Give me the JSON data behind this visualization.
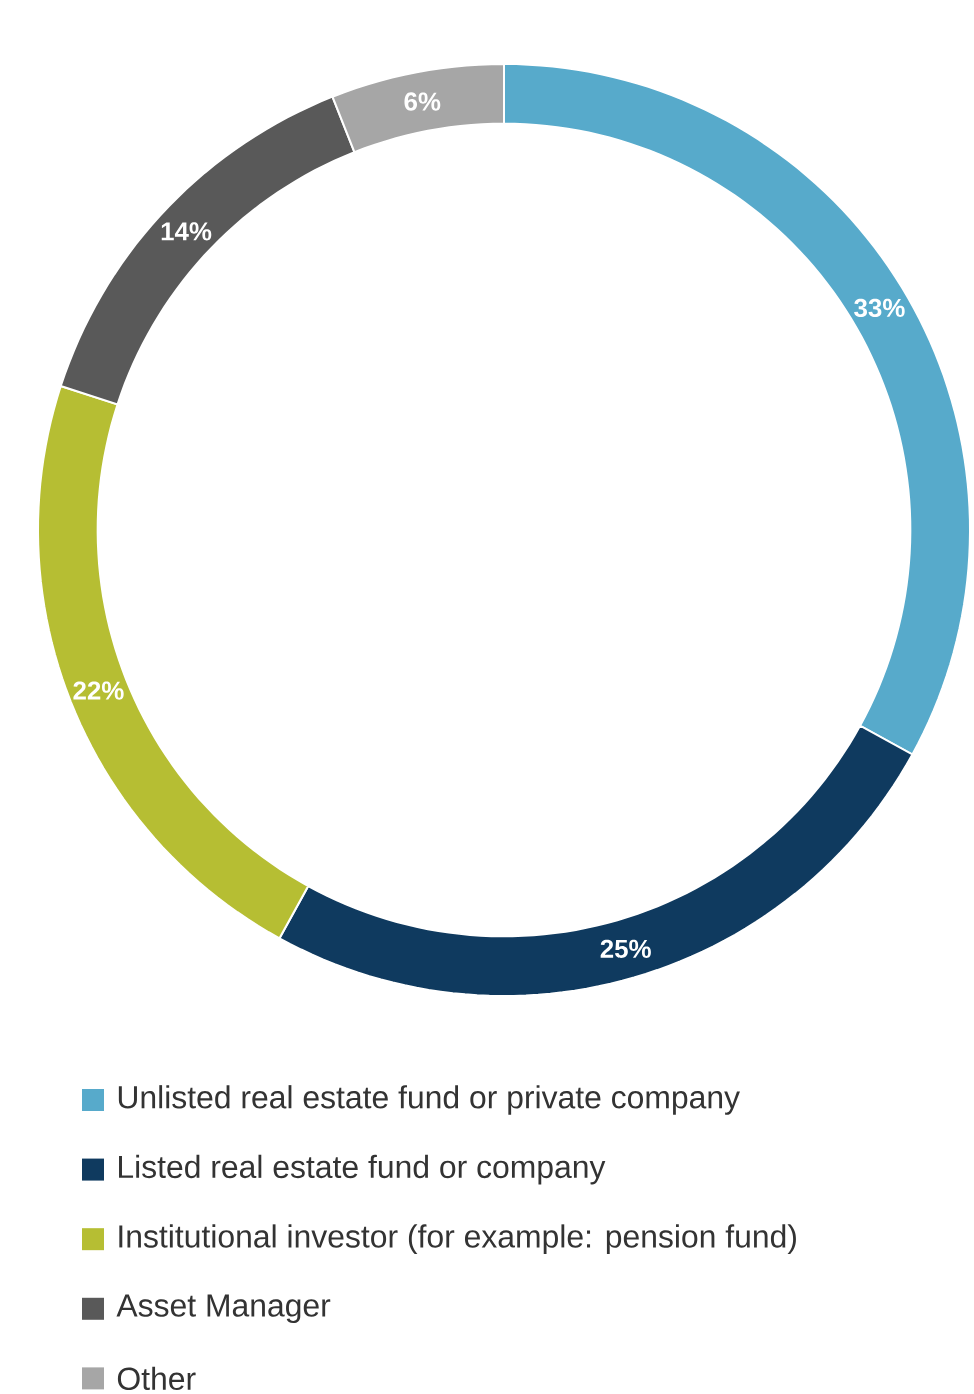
{
  "chart_data": {
    "type": "donut",
    "categories": [
      "Unlisted real estate fund or private company",
      "Listed real estate fund or company",
      "Institutional investor (for example: pension fund)",
      "Asset Manager",
      "Other"
    ],
    "values": [
      33,
      25,
      22,
      14,
      6
    ],
    "value_labels": [
      "33%",
      "25%",
      "22%",
      "14%",
      "6%"
    ],
    "colors": [
      "#57aacb",
      "#0f3a5f",
      "#b6be33",
      "#595959",
      "#a6a6a6"
    ],
    "legend": "bottom"
  }
}
